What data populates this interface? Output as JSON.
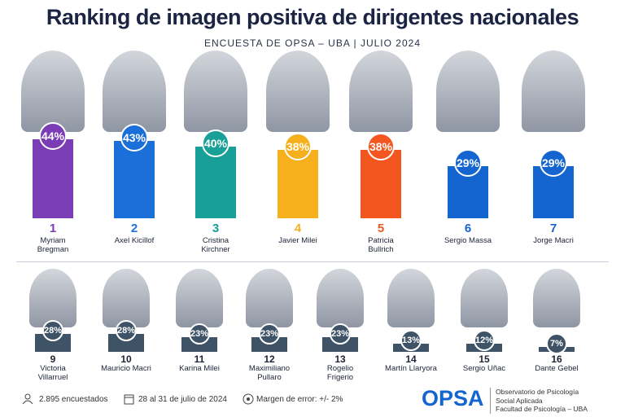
{
  "chart_data": [
    {
      "type": "bar",
      "title": "Ranking de imagen positiva de dirigentes nacionales",
      "subtitle": "ENCUESTA DE OPSA – UBA | JULIO 2024",
      "ranks": [
        1,
        2,
        3,
        4,
        5,
        6,
        7
      ],
      "categories": [
        "Myriam Bregman",
        "Axel Kicillof",
        "Cristina Kirchner",
        "Javier Milei",
        "Patricia Bullrich",
        "Sergio Massa",
        "Jorge Macri"
      ],
      "values": [
        44,
        43,
        40,
        38,
        38,
        29,
        29
      ],
      "value_labels": [
        "44%",
        "43%",
        "40%",
        "38%",
        "38%",
        "29%",
        "29%"
      ],
      "colors": [
        "#7a3db5",
        "#1a6fd8",
        "#179f98",
        "#f5b01c",
        "#f3561f",
        "#1565d0",
        "#1565d0"
      ]
    },
    {
      "type": "bar",
      "ranks": [
        9,
        10,
        11,
        12,
        13,
        14,
        15,
        16
      ],
      "categories": [
        "Victoria Villarruel",
        "Mauricio Macri",
        "Karina Milei",
        "Maximiliano Pullaro",
        "Rogelio Frigerio",
        "Martín Llaryora",
        "Sergio Uñac",
        "Dante Gebel"
      ],
      "values": [
        28,
        28,
        23,
        23,
        23,
        13,
        12,
        7
      ],
      "value_labels": [
        "28%",
        "28%",
        "23%",
        "23%",
        "23%",
        "13%",
        "12%",
        "7%"
      ],
      "color": "#3e5366"
    }
  ],
  "footer": {
    "respondents": "2.895 encuestados",
    "dates": "28 al 31 de julio de 2024",
    "margin": "Margen de error: +/- 2%",
    "logo": "OPSA",
    "org": [
      "Observatorio de Psicología",
      "Social Aplicada",
      "Facultad de Psicología – UBA"
    ]
  }
}
